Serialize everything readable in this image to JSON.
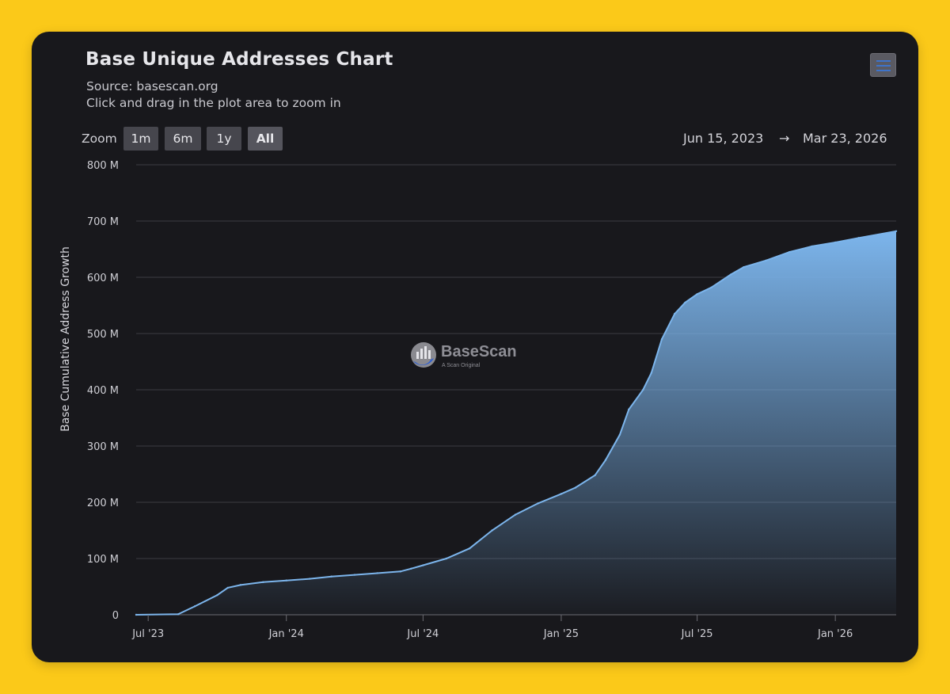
{
  "title": "Base Unique Addresses Chart",
  "subtitle": "Source: basescan.org",
  "hint": "Click and drag in the plot area to zoom in",
  "menu_icon": "hamburger-menu-icon",
  "zoom": {
    "label": "Zoom",
    "buttons": [
      "1m",
      "6m",
      "1y",
      "All"
    ],
    "active": "All"
  },
  "range": {
    "from": "Jun 15, 2023",
    "arrow": "→",
    "to": "Mar 23, 2026"
  },
  "watermark": {
    "name": "BaseScan",
    "tagline": "A Scan Original"
  },
  "colors": {
    "background": "#18181c",
    "line": "#7cb5ec",
    "page": "#fbc919"
  },
  "chart_data": {
    "type": "area",
    "title": "Base Unique Addresses Chart",
    "ylabel": "Base Cumulative Address Growth",
    "xlabel": "",
    "x_start": "2023-06-15",
    "x_end": "2026-03-23",
    "ylim": [
      0,
      800
    ],
    "y_unit": "M",
    "y_ticks": [
      0,
      100,
      200,
      300,
      400,
      500,
      600,
      700,
      800
    ],
    "y_tick_labels": [
      "0",
      "100 M",
      "200 M",
      "300 M",
      "400 M",
      "500 M",
      "600 M",
      "700 M",
      "800 M"
    ],
    "x_ticks": [
      {
        "date": "2023-07-01",
        "label": "Jul '23"
      },
      {
        "date": "2024-01-01",
        "label": "Jan '24"
      },
      {
        "date": "2024-07-01",
        "label": "Jul '24"
      },
      {
        "date": "2025-01-01",
        "label": "Jan '25"
      },
      {
        "date": "2025-07-01",
        "label": "Jul '25"
      },
      {
        "date": "2026-01-01",
        "label": "Jan '26"
      }
    ],
    "series": [
      {
        "name": "Base Cumulative Address Growth",
        "points": [
          [
            "2023-06-15",
            0
          ],
          [
            "2023-08-10",
            1
          ],
          [
            "2023-09-01",
            15
          ],
          [
            "2023-10-01",
            35
          ],
          [
            "2023-10-15",
            48
          ],
          [
            "2023-11-01",
            53
          ],
          [
            "2023-12-01",
            58
          ],
          [
            "2024-01-01",
            61
          ],
          [
            "2024-02-01",
            64
          ],
          [
            "2024-03-01",
            68
          ],
          [
            "2024-04-01",
            71
          ],
          [
            "2024-05-01",
            74
          ],
          [
            "2024-06-01",
            77
          ],
          [
            "2024-06-15",
            82
          ],
          [
            "2024-07-01",
            88
          ],
          [
            "2024-08-01",
            100
          ],
          [
            "2024-09-01",
            118
          ],
          [
            "2024-10-01",
            150
          ],
          [
            "2024-11-01",
            178
          ],
          [
            "2024-12-01",
            198
          ],
          [
            "2025-01-01",
            215
          ],
          [
            "2025-01-20",
            226
          ],
          [
            "2025-02-15",
            248
          ],
          [
            "2025-03-01",
            275
          ],
          [
            "2025-03-20",
            320
          ],
          [
            "2025-04-01",
            365
          ],
          [
            "2025-04-20",
            400
          ],
          [
            "2025-05-01",
            430
          ],
          [
            "2025-05-15",
            490
          ],
          [
            "2025-06-01",
            535
          ],
          [
            "2025-06-15",
            555
          ],
          [
            "2025-07-01",
            570
          ],
          [
            "2025-07-20",
            582
          ],
          [
            "2025-08-15",
            605
          ],
          [
            "2025-09-01",
            618
          ],
          [
            "2025-10-01",
            630
          ],
          [
            "2025-11-01",
            645
          ],
          [
            "2025-12-01",
            655
          ],
          [
            "2026-01-01",
            662
          ],
          [
            "2026-02-01",
            670
          ],
          [
            "2026-03-23",
            682
          ]
        ]
      }
    ]
  }
}
